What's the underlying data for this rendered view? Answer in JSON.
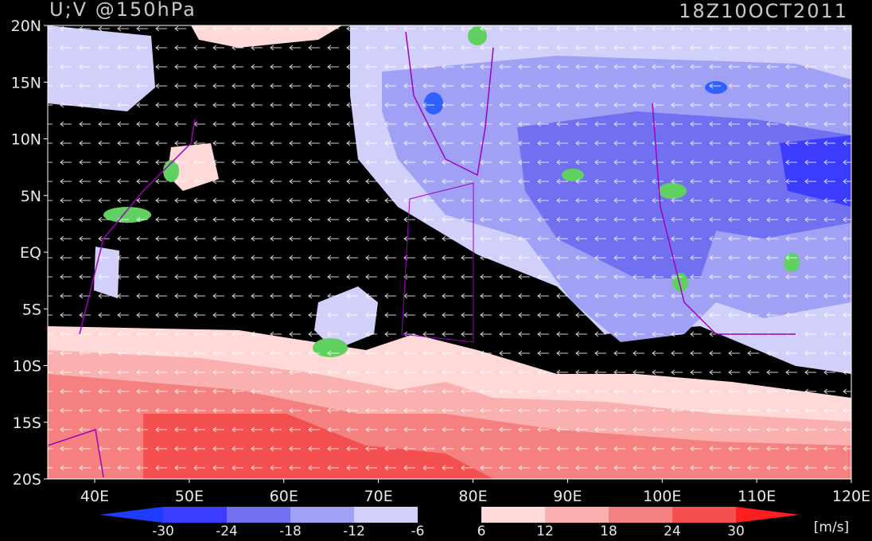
{
  "header": {
    "title": "U;V @150hPa",
    "date": "18Z10OCT2011"
  },
  "axes": {
    "lat_labels": [
      "20N",
      "15N",
      "10N",
      "5N",
      "EQ",
      "5S",
      "10S",
      "15S",
      "20S"
    ],
    "lon_labels": [
      "40E",
      "50E",
      "60E",
      "70E",
      "80E",
      "90E",
      "100E",
      "110E",
      "120E"
    ]
  },
  "colorbar": {
    "labels": [
      -30,
      -24,
      -18,
      -12,
      -6,
      6,
      12,
      18,
      24,
      30
    ],
    "colors": [
      "#1e3cff",
      "#3c3cff",
      "#7070f0",
      "#a0a0f5",
      "#d0d0fa",
      "#000000",
      "#ffd8d8",
      "#fbb0b0",
      "#f58080",
      "#f55050",
      "#ff1e1e"
    ],
    "unit": "[m/s]"
  }
}
